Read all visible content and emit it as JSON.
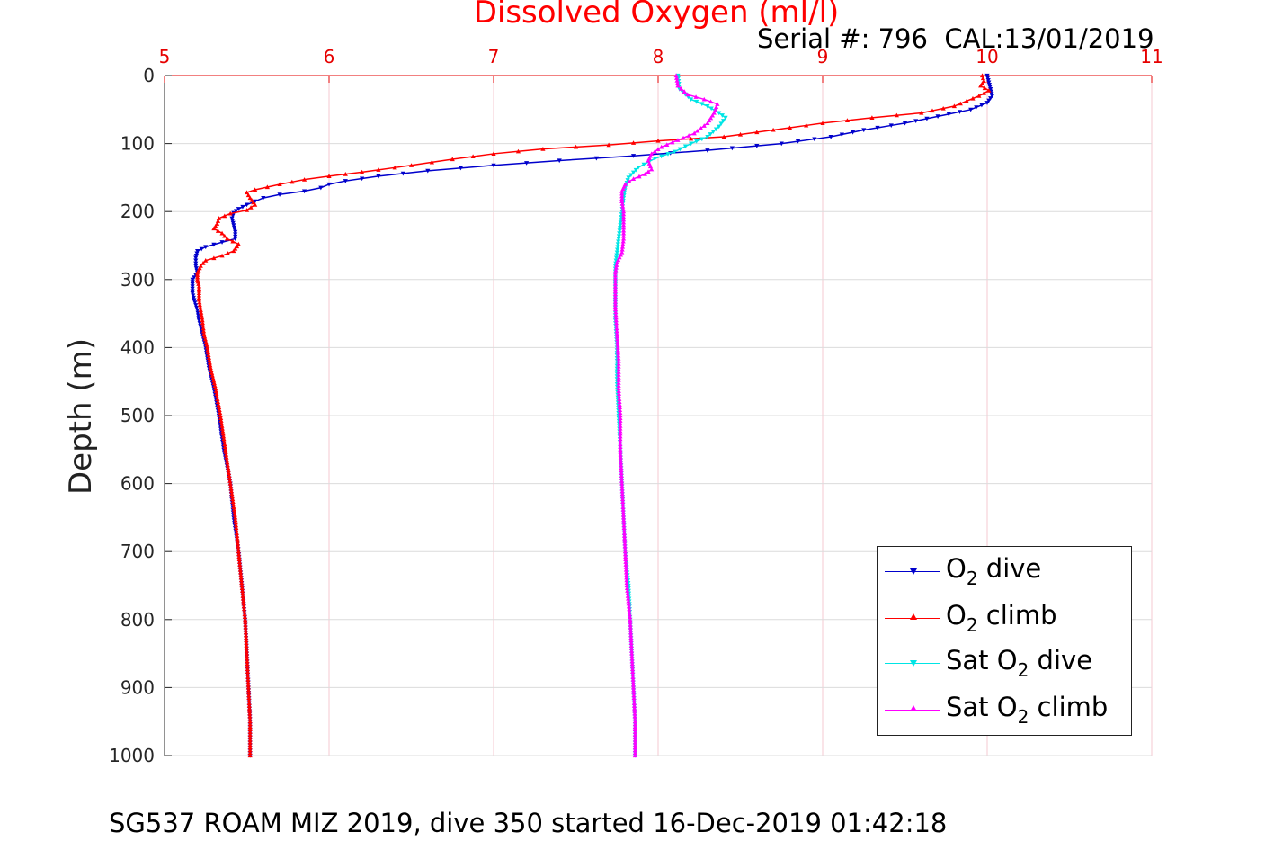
{
  "chart_data": {
    "type": "scatter",
    "title": "Dissolved Oxygen (ml/l)",
    "subtitle": "Serial #: 796  CAL:13/01/2019",
    "xlabel": "",
    "ylabel": "Depth (m)",
    "footer": "SG537 ROAM MIZ 2019, dive 350 started 16-Dec-2019 01:42:18",
    "xlim": [
      5,
      11
    ],
    "ylim": [
      0,
      1000
    ],
    "y_reversed": true,
    "x_axis_position": "top",
    "x_ticks": [
      "5",
      "6",
      "7",
      "8",
      "9",
      "10",
      "11"
    ],
    "y_ticks": [
      "0",
      "100",
      "200",
      "300",
      "400",
      "500",
      "600",
      "700",
      "800",
      "900",
      "1000"
    ],
    "grid": true,
    "legend": "bottom-right",
    "series": [
      {
        "name": "O2 dive",
        "label_parts": [
          "O",
          "2",
          " dive"
        ],
        "color": "#0000cc",
        "marker": "triangle-down",
        "points": [
          [
            10.0,
            0
          ],
          [
            10.01,
            10
          ],
          [
            10.02,
            20
          ],
          [
            10.03,
            30
          ],
          [
            10.0,
            40
          ],
          [
            9.9,
            50
          ],
          [
            9.7,
            60
          ],
          [
            9.5,
            70
          ],
          [
            9.25,
            80
          ],
          [
            9.05,
            90
          ],
          [
            8.75,
            100
          ],
          [
            8.3,
            110
          ],
          [
            7.85,
            118
          ],
          [
            7.4,
            125
          ],
          [
            7.0,
            132
          ],
          [
            6.6,
            140
          ],
          [
            6.3,
            148
          ],
          [
            6.1,
            155
          ],
          [
            6.0,
            160
          ],
          [
            5.95,
            165
          ],
          [
            5.85,
            170
          ],
          [
            5.7,
            175
          ],
          [
            5.6,
            180
          ],
          [
            5.55,
            185
          ],
          [
            5.5,
            190
          ],
          [
            5.45,
            196
          ],
          [
            5.42,
            202
          ],
          [
            5.41,
            210
          ],
          [
            5.42,
            220
          ],
          [
            5.43,
            230
          ],
          [
            5.43,
            240
          ],
          [
            5.35,
            245
          ],
          [
            5.25,
            252
          ],
          [
            5.2,
            258
          ],
          [
            5.19,
            268
          ],
          [
            5.19,
            280
          ],
          [
            5.2,
            290
          ],
          [
            5.17,
            300
          ],
          [
            5.17,
            310
          ],
          [
            5.17,
            320
          ],
          [
            5.18,
            330
          ],
          [
            5.2,
            345
          ],
          [
            5.21,
            360
          ],
          [
            5.23,
            380
          ],
          [
            5.25,
            400
          ],
          [
            5.27,
            430
          ],
          [
            5.3,
            460
          ],
          [
            5.33,
            500
          ],
          [
            5.36,
            550
          ],
          [
            5.4,
            600
          ],
          [
            5.42,
            650
          ],
          [
            5.45,
            700
          ],
          [
            5.47,
            750
          ],
          [
            5.49,
            800
          ],
          [
            5.5,
            850
          ],
          [
            5.51,
            900
          ],
          [
            5.52,
            950
          ],
          [
            5.52,
            1000
          ]
        ]
      },
      {
        "name": "O2 climb",
        "label_parts": [
          "O",
          "2",
          " climb"
        ],
        "color": "#ff0000",
        "marker": "triangle-up",
        "points": [
          [
            9.97,
            0
          ],
          [
            9.98,
            8
          ],
          [
            9.96,
            15
          ],
          [
            10.01,
            22
          ],
          [
            9.95,
            30
          ],
          [
            9.8,
            45
          ],
          [
            9.6,
            55
          ],
          [
            9.3,
            62
          ],
          [
            9.0,
            70
          ],
          [
            8.7,
            80
          ],
          [
            8.4,
            90
          ],
          [
            8.0,
            96
          ],
          [
            7.7,
            102
          ],
          [
            7.3,
            108
          ],
          [
            7.0,
            115
          ],
          [
            6.75,
            123
          ],
          [
            6.5,
            132
          ],
          [
            6.2,
            142
          ],
          [
            6.0,
            148
          ],
          [
            5.85,
            153
          ],
          [
            5.7,
            160
          ],
          [
            5.55,
            168
          ],
          [
            5.5,
            172
          ],
          [
            5.52,
            180
          ],
          [
            5.55,
            190
          ],
          [
            5.5,
            198
          ],
          [
            5.4,
            203
          ],
          [
            5.33,
            210
          ],
          [
            5.32,
            218
          ],
          [
            5.3,
            225
          ],
          [
            5.35,
            232
          ],
          [
            5.38,
            240
          ],
          [
            5.45,
            248
          ],
          [
            5.42,
            258
          ],
          [
            5.35,
            265
          ],
          [
            5.25,
            272
          ],
          [
            5.22,
            280
          ],
          [
            5.2,
            290
          ],
          [
            5.2,
            300
          ],
          [
            5.21,
            310
          ],
          [
            5.21,
            320
          ],
          [
            5.21,
            330
          ],
          [
            5.22,
            345
          ],
          [
            5.23,
            360
          ],
          [
            5.24,
            380
          ],
          [
            5.26,
            400
          ],
          [
            5.28,
            430
          ],
          [
            5.31,
            460
          ],
          [
            5.34,
            500
          ],
          [
            5.37,
            550
          ],
          [
            5.4,
            600
          ],
          [
            5.43,
            650
          ],
          [
            5.45,
            700
          ],
          [
            5.47,
            750
          ],
          [
            5.49,
            800
          ],
          [
            5.5,
            850
          ],
          [
            5.51,
            900
          ],
          [
            5.52,
            950
          ],
          [
            5.52,
            1000
          ]
        ]
      },
      {
        "name": "Sat O2 dive",
        "label_parts": [
          "Sat O",
          "2",
          " dive"
        ],
        "color": "#00e5e5",
        "marker": "triangle-down",
        "points": [
          [
            8.12,
            0
          ],
          [
            8.13,
            20
          ],
          [
            8.2,
            35
          ],
          [
            8.3,
            45
          ],
          [
            8.37,
            55
          ],
          [
            8.41,
            62
          ],
          [
            8.37,
            75
          ],
          [
            8.3,
            90
          ],
          [
            8.2,
            100
          ],
          [
            8.1,
            112
          ],
          [
            7.98,
            122
          ],
          [
            7.88,
            135
          ],
          [
            7.82,
            150
          ],
          [
            7.8,
            165
          ],
          [
            7.79,
            180
          ],
          [
            7.78,
            200
          ],
          [
            7.77,
            220
          ],
          [
            7.76,
            240
          ],
          [
            7.75,
            260
          ],
          [
            7.74,
            280
          ],
          [
            7.74,
            300
          ],
          [
            7.74,
            330
          ],
          [
            7.74,
            360
          ],
          [
            7.75,
            400
          ],
          [
            7.75,
            450
          ],
          [
            7.76,
            500
          ],
          [
            7.77,
            550
          ],
          [
            7.78,
            600
          ],
          [
            7.79,
            650
          ],
          [
            7.8,
            700
          ],
          [
            7.82,
            750
          ],
          [
            7.83,
            800
          ],
          [
            7.84,
            850
          ],
          [
            7.85,
            900
          ],
          [
            7.86,
            950
          ],
          [
            7.86,
            1000
          ]
        ]
      },
      {
        "name": "Sat O2 climb",
        "label_parts": [
          "Sat O",
          "2",
          " climb"
        ],
        "color": "#ff00ff",
        "marker": "triangle-up",
        "points": [
          [
            8.11,
            0
          ],
          [
            8.12,
            15
          ],
          [
            8.18,
            28
          ],
          [
            8.28,
            35
          ],
          [
            8.36,
            42
          ],
          [
            8.34,
            55
          ],
          [
            8.3,
            70
          ],
          [
            8.22,
            85
          ],
          [
            8.12,
            95
          ],
          [
            8.02,
            105
          ],
          [
            7.96,
            115
          ],
          [
            7.94,
            125
          ],
          [
            7.96,
            138
          ],
          [
            7.92,
            145
          ],
          [
            7.85,
            152
          ],
          [
            7.8,
            160
          ],
          [
            7.78,
            170
          ],
          [
            7.78,
            185
          ],
          [
            7.79,
            200
          ],
          [
            7.79,
            220
          ],
          [
            7.79,
            240
          ],
          [
            7.78,
            260
          ],
          [
            7.75,
            275
          ],
          [
            7.74,
            290
          ],
          [
            7.74,
            310
          ],
          [
            7.74,
            340
          ],
          [
            7.75,
            380
          ],
          [
            7.76,
            420
          ],
          [
            7.76,
            460
          ],
          [
            7.77,
            500
          ],
          [
            7.77,
            550
          ],
          [
            7.78,
            600
          ],
          [
            7.79,
            650
          ],
          [
            7.8,
            700
          ],
          [
            7.81,
            750
          ],
          [
            7.83,
            800
          ],
          [
            7.84,
            850
          ],
          [
            7.85,
            900
          ],
          [
            7.86,
            950
          ],
          [
            7.86,
            1000
          ]
        ]
      }
    ]
  }
}
